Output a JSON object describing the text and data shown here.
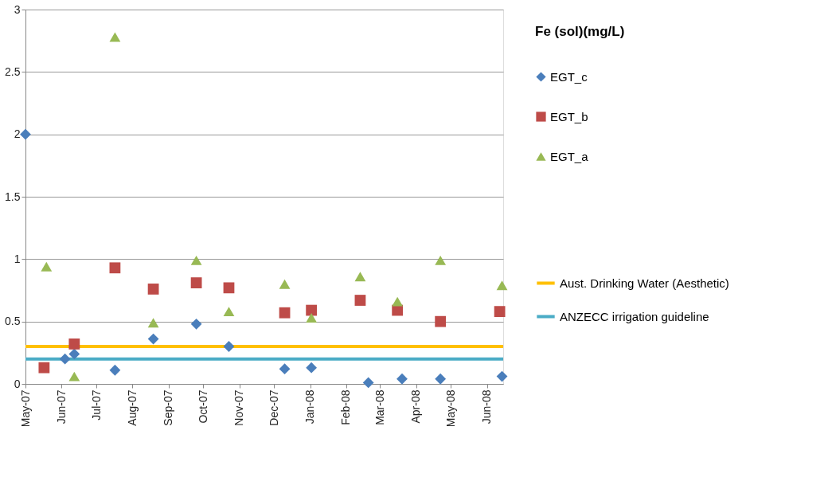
{
  "chart_data": {
    "type": "scatter",
    "legend_title": "Fe (sol)(mg/L)",
    "legend": "right",
    "grid": "y",
    "ylim": [
      0,
      3
    ],
    "yticks": [
      0,
      0.5,
      1,
      1.5,
      2,
      2.5,
      3
    ],
    "xlim": [
      "2007-05-01",
      "2008-06-15"
    ],
    "xticks": [
      {
        "value": "2007-05-01",
        "label": "May-07"
      },
      {
        "value": "2007-06-01",
        "label": "Jun-07"
      },
      {
        "value": "2007-07-01",
        "label": "Jul-07"
      },
      {
        "value": "2007-08-01",
        "label": "Aug-07"
      },
      {
        "value": "2007-09-01",
        "label": "Sep-07"
      },
      {
        "value": "2007-10-01",
        "label": "Oct-07"
      },
      {
        "value": "2007-11-01",
        "label": "Nov-07"
      },
      {
        "value": "2007-12-01",
        "label": "Dec-07"
      },
      {
        "value": "2008-01-01",
        "label": "Jan-08"
      },
      {
        "value": "2008-02-01",
        "label": "Feb-08"
      },
      {
        "value": "2008-03-01",
        "label": "Mar-08"
      },
      {
        "value": "2008-04-01",
        "label": "Apr-08"
      },
      {
        "value": "2008-05-01",
        "label": "May-08"
      },
      {
        "value": "2008-06-01",
        "label": "Jun-08"
      }
    ],
    "series": [
      {
        "name": "EGT_c",
        "color": "#4a7ebb",
        "marker": "diamond",
        "x": [
          "2007-05-01",
          "2007-06-04",
          "2007-06-12",
          "2007-07-17",
          "2007-08-19",
          "2007-09-25",
          "2007-10-23",
          "2007-12-10",
          "2008-01-02",
          "2008-02-20",
          "2008-03-20",
          "2008-04-22",
          "2008-06-14"
        ],
        "values": [
          2.0,
          0.2,
          0.24,
          0.11,
          0.36,
          0.48,
          0.3,
          0.12,
          0.13,
          0.01,
          0.04,
          0.04,
          0.06
        ]
      },
      {
        "name": "EGT_b",
        "color": "#be4b48",
        "marker": "square",
        "x": [
          "2007-05-17",
          "2007-06-12",
          "2007-07-17",
          "2007-08-19",
          "2007-09-25",
          "2007-10-23",
          "2007-12-10",
          "2008-01-02",
          "2008-02-13",
          "2008-03-16",
          "2008-04-22",
          "2008-06-12"
        ],
        "values": [
          0.13,
          0.32,
          0.93,
          0.76,
          0.81,
          0.77,
          0.57,
          0.59,
          0.67,
          0.59,
          0.5,
          0.58
        ]
      },
      {
        "name": "EGT_a",
        "color": "#98b954",
        "marker": "triangle",
        "x": [
          "2007-05-19",
          "2007-06-12",
          "2007-07-17",
          "2007-08-19",
          "2007-09-25",
          "2007-10-23",
          "2007-12-10",
          "2008-01-02",
          "2008-02-13",
          "2008-03-16",
          "2008-04-22",
          "2008-06-14"
        ],
        "values": [
          0.94,
          0.06,
          2.78,
          0.49,
          0.99,
          0.58,
          0.8,
          0.53,
          0.86,
          0.66,
          0.99,
          0.79
        ]
      }
    ],
    "ref_lines": [
      {
        "axis": "y",
        "value": 0.3,
        "label": "Aust. Drinking Water (Aesthetic)",
        "color": "#ffc000"
      },
      {
        "axis": "y",
        "value": 0.2,
        "label": "ANZECC irrigation guideline",
        "color": "#4bacc6"
      }
    ]
  }
}
